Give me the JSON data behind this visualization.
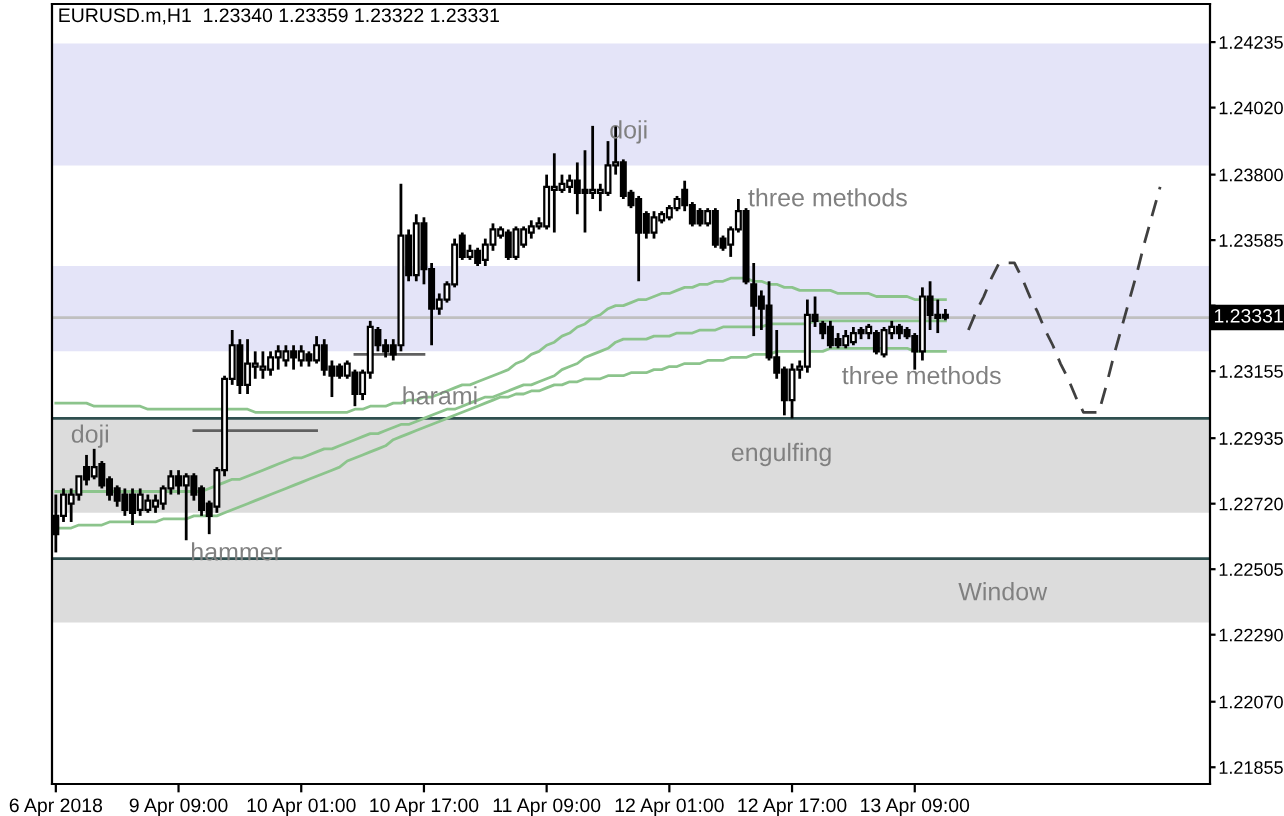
{
  "chart_data": {
    "type": "candlestick",
    "title": "EURUSD.m,H1  1.23340 1.23359 1.23322 1.23331",
    "categories": [
      "6 Apr 2018",
      null,
      null,
      null,
      null,
      null,
      null,
      null,
      null,
      null,
      null,
      null,
      null,
      null,
      null,
      null,
      "9 Apr 09:00",
      null,
      null,
      null,
      null,
      null,
      null,
      null,
      null,
      null,
      null,
      null,
      null,
      null,
      null,
      null,
      "10 Apr 01:00",
      null,
      null,
      null,
      null,
      null,
      null,
      null,
      null,
      null,
      null,
      null,
      null,
      null,
      null,
      null,
      "10 Apr 17:00",
      null,
      null,
      null,
      null,
      null,
      null,
      null,
      null,
      null,
      null,
      null,
      null,
      null,
      null,
      null,
      "11 Apr 09:00",
      null,
      null,
      null,
      null,
      null,
      null,
      null,
      null,
      null,
      null,
      null,
      null,
      null,
      null,
      null,
      "12 Apr 01:00",
      null,
      null,
      null,
      null,
      null,
      null,
      null,
      null,
      null,
      null,
      null,
      null,
      null,
      null,
      null,
      "12 Apr 17:00",
      null,
      null,
      null,
      null,
      null,
      null,
      null,
      null,
      null,
      null,
      null,
      null,
      null,
      null,
      null,
      "13 Apr 09:00",
      null,
      null,
      null,
      null,
      null,
      null,
      null,
      null,
      null,
      null,
      null,
      null,
      null,
      null,
      null,
      null,
      null,
      null,
      null,
      null,
      null,
      null,
      null,
      null,
      null,
      null,
      null,
      null,
      null,
      null,
      null,
      null,
      null,
      null,
      null,
      null,
      null,
      null
    ],
    "ohlc": [
      [
        1.2268,
        1.2275,
        1.2256,
        1.2262
      ],
      [
        1.2268,
        1.2277,
        1.2266,
        1.2275
      ],
      [
        1.2272,
        1.2277,
        1.2266,
        1.2275
      ],
      [
        1.2275,
        1.2281,
        1.2273,
        1.2281
      ],
      [
        1.2284,
        1.2288,
        1.2278,
        1.228
      ],
      [
        1.2281,
        1.229,
        1.228,
        1.2284
      ],
      [
        1.2285,
        1.2286,
        1.2277,
        1.2278
      ],
      [
        1.228,
        1.2281,
        1.2273,
        1.2275
      ],
      [
        1.2277,
        1.2278,
        1.2271,
        1.2273
      ],
      [
        1.2275,
        1.2277,
        1.2268,
        1.227
      ],
      [
        1.2275,
        1.2277,
        1.2265,
        1.2269
      ],
      [
        1.227,
        1.2277,
        1.2268,
        1.2275
      ],
      [
        1.227,
        1.2275,
        1.2269,
        1.2273
      ],
      [
        1.2271,
        1.2275,
        1.2269,
        1.2273
      ],
      [
        1.2272,
        1.2278,
        1.227,
        1.2277
      ],
      [
        1.2277,
        1.2283,
        1.2275,
        1.2281
      ],
      [
        1.2281,
        1.2283,
        1.2275,
        1.2278
      ],
      [
        1.2278,
        1.2282,
        1.226,
        1.2281
      ],
      [
        1.2281,
        1.2282,
        1.2273,
        1.2275
      ],
      [
        1.2277,
        1.2278,
        1.2268,
        1.227
      ],
      [
        1.2272,
        1.2273,
        1.2262,
        1.2268
      ],
      [
        1.2271,
        1.2284,
        1.2269,
        1.2283
      ],
      [
        1.2283,
        1.2314,
        1.2281,
        1.2313
      ],
      [
        1.2313,
        1.2329,
        1.2311,
        1.2324
      ],
      [
        1.2324,
        1.2326,
        1.2308,
        1.2311
      ],
      [
        1.2311,
        1.2326,
        1.2308,
        1.2318
      ],
      [
        1.2317,
        1.2322,
        1.2313,
        1.2318
      ],
      [
        1.2316,
        1.2322,
        1.2313,
        1.2317
      ],
      [
        1.2316,
        1.2322,
        1.2314,
        1.232
      ],
      [
        1.232,
        1.2324,
        1.2316,
        1.2322
      ],
      [
        1.2319,
        1.2324,
        1.2317,
        1.2322
      ],
      [
        1.2322,
        1.2324,
        1.2316,
        1.232
      ],
      [
        1.2319,
        1.2324,
        1.2317,
        1.2322
      ],
      [
        1.2321,
        1.2322,
        1.2317,
        1.2319
      ],
      [
        1.2319,
        1.2327,
        1.2318,
        1.2324
      ],
      [
        1.2324,
        1.2326,
        1.2314,
        1.2316
      ],
      [
        1.2317,
        1.2319,
        1.2307,
        1.2314
      ],
      [
        1.2317,
        1.2318,
        1.2313,
        1.2314
      ],
      [
        1.2314,
        1.2319,
        1.2313,
        1.2318
      ],
      [
        1.2315,
        1.2316,
        1.2304,
        1.2308
      ],
      [
        1.2308,
        1.2316,
        1.2306,
        1.2315
      ],
      [
        1.2315,
        1.2332,
        1.2313,
        1.233
      ],
      [
        1.2329,
        1.233,
        1.2322,
        1.2324
      ],
      [
        1.2324,
        1.2326,
        1.232,
        1.2322
      ],
      [
        1.2324,
        1.2326,
        1.2319,
        1.2321
      ],
      [
        1.2324,
        1.2377,
        1.2322,
        1.236
      ],
      [
        1.236,
        1.2362,
        1.2345,
        1.2347
      ],
      [
        1.2347,
        1.2367,
        1.2345,
        1.2364
      ],
      [
        1.2364,
        1.2366,
        1.2344,
        1.2349
      ],
      [
        1.2349,
        1.2351,
        1.2324,
        1.2336
      ],
      [
        1.2336,
        1.2341,
        1.2334,
        1.2339
      ],
      [
        1.2339,
        1.2345,
        1.2338,
        1.2344
      ],
      [
        1.2344,
        1.2359,
        1.2343,
        1.2357
      ],
      [
        1.236,
        1.2361,
        1.2352,
        1.2353
      ],
      [
        1.2353,
        1.2357,
        1.2352,
        1.2355
      ],
      [
        1.2355,
        1.2356,
        1.235,
        1.2351
      ],
      [
        1.2352,
        1.2359,
        1.235,
        1.2357
      ],
      [
        1.2357,
        1.2364,
        1.2355,
        1.2362
      ],
      [
        1.236,
        1.2363,
        1.2359,
        1.2362
      ],
      [
        1.2361,
        1.2362,
        1.2352,
        1.2353
      ],
      [
        1.2353,
        1.2363,
        1.2352,
        1.2362
      ],
      [
        1.2357,
        1.2363,
        1.2356,
        1.2362
      ],
      [
        1.2361,
        1.2365,
        1.2359,
        1.2363
      ],
      [
        1.2363,
        1.2366,
        1.2362,
        1.2364
      ],
      [
        1.2363,
        1.238,
        1.2362,
        1.2376
      ],
      [
        1.2375,
        1.2387,
        1.2361,
        1.2376
      ],
      [
        1.2375,
        1.238,
        1.2374,
        1.2377
      ],
      [
        1.2376,
        1.238,
        1.2374,
        1.2378
      ],
      [
        1.2378,
        1.2384,
        1.2367,
        1.2374
      ],
      [
        1.2375,
        1.2388,
        1.2361,
        1.2374
      ],
      [
        1.2374,
        1.2396,
        1.2372,
        1.2375
      ],
      [
        1.2374,
        1.2377,
        1.2368,
        1.2375
      ],
      [
        1.2374,
        1.2391,
        1.2373,
        1.2383
      ],
      [
        1.2383,
        1.2396,
        1.238,
        1.2384
      ],
      [
        1.2384,
        1.2385,
        1.2372,
        1.2373
      ],
      [
        1.2374,
        1.2375,
        1.2369,
        1.237
      ],
      [
        1.2372,
        1.2373,
        1.2345,
        1.2361
      ],
      [
        1.2367,
        1.2368,
        1.2359,
        1.2361
      ],
      [
        1.2361,
        1.2368,
        1.2359,
        1.2366
      ],
      [
        1.2365,
        1.2368,
        1.2364,
        1.2367
      ],
      [
        1.2366,
        1.237,
        1.2365,
        1.2369
      ],
      [
        1.2369,
        1.2373,
        1.2368,
        1.2372
      ],
      [
        1.2375,
        1.2378,
        1.2368,
        1.237
      ],
      [
        1.237,
        1.2371,
        1.2363,
        1.2364
      ],
      [
        1.2368,
        1.2369,
        1.2363,
        1.2364
      ],
      [
        1.2364,
        1.2369,
        1.2363,
        1.2368
      ],
      [
        1.2368,
        1.2369,
        1.2356,
        1.2357
      ],
      [
        1.2359,
        1.236,
        1.2355,
        1.2356
      ],
      [
        1.2357,
        1.2363,
        1.2353,
        1.2362
      ],
      [
        1.2362,
        1.2372,
        1.2361,
        1.2368
      ],
      [
        1.2368,
        1.2369,
        1.2344,
        1.2345
      ],
      [
        1.2344,
        1.2351,
        1.2327,
        1.2337
      ],
      [
        1.234,
        1.2342,
        1.2329,
        1.2336
      ],
      [
        1.2337,
        1.2345,
        1.2319,
        1.232
      ],
      [
        1.232,
        1.2329,
        1.2313,
        1.2315
      ],
      [
        1.2316,
        1.2317,
        1.2301,
        1.2306
      ],
      [
        1.2306,
        1.2318,
        1.23,
        1.2316
      ],
      [
        1.2316,
        1.2319,
        1.2313,
        1.2317
      ],
      [
        1.2317,
        1.2339,
        1.2315,
        1.2334
      ],
      [
        1.2334,
        1.234,
        1.233,
        1.2332
      ],
      [
        1.2331,
        1.2332,
        1.2326,
        1.2328
      ],
      [
        1.233,
        1.2332,
        1.2323,
        1.2324
      ],
      [
        1.2326,
        1.2328,
        1.2323,
        1.2324
      ],
      [
        1.2324,
        1.2329,
        1.2323,
        1.2327
      ],
      [
        1.2325,
        1.233,
        1.2324,
        1.2328
      ],
      [
        1.2329,
        1.233,
        1.2326,
        1.2328
      ],
      [
        1.2328,
        1.2331,
        1.2326,
        1.233
      ],
      [
        1.2328,
        1.2329,
        1.2321,
        1.2322
      ],
      [
        1.2321,
        1.233,
        1.232,
        1.2329
      ],
      [
        1.2328,
        1.2332,
        1.2326,
        1.233
      ],
      [
        1.233,
        1.2331,
        1.2326,
        1.2328
      ],
      [
        1.2329,
        1.233,
        1.2326,
        1.2327
      ],
      [
        1.2327,
        1.2328,
        1.2316,
        1.2322
      ],
      [
        1.2322,
        1.2343,
        1.2319,
        1.234
      ],
      [
        1.234,
        1.2345,
        1.2329,
        1.2334
      ],
      [
        1.2334,
        1.2339,
        1.2328,
        1.2333
      ],
      [
        1.2334,
        1.23359,
        1.23322,
        1.23331
      ],
      null,
      null,
      null,
      null,
      null,
      null,
      null,
      null,
      null,
      null,
      null,
      null,
      null,
      null,
      null,
      null,
      null,
      null,
      null,
      null,
      null,
      null,
      null,
      null,
      null,
      null,
      null,
      null,
      null,
      null,
      null,
      null,
      null,
      null
    ],
    "color": "#000000",
    "series": [
      {
        "type": "line",
        "color": "#8cc48c",
        "values": [
          1.2305,
          1.2305,
          1.2305,
          1.2305,
          1.2305,
          1.2304,
          1.2304,
          1.2304,
          1.2304,
          1.2304,
          1.2304,
          1.2304,
          1.2303,
          1.2303,
          1.2303,
          1.2303,
          1.2303,
          1.2303,
          1.2303,
          1.2303,
          1.2303,
          1.2303,
          1.2303,
          1.2303,
          1.2303,
          1.2303,
          1.2302,
          1.2302,
          1.2302,
          1.2302,
          1.2302,
          1.2302,
          1.2302,
          1.2302,
          1.2302,
          1.2302,
          1.2302,
          1.2302,
          1.2302,
          1.2303,
          1.2303,
          1.2304,
          1.2304,
          1.2304,
          1.2305,
          1.2305,
          1.2306,
          1.2306,
          1.2307,
          1.2307,
          1.2308,
          1.2309,
          1.231,
          1.2311,
          1.2311,
          1.2312,
          1.2313,
          1.2314,
          1.2315,
          1.2316,
          1.2318,
          1.2319,
          1.2321,
          1.2322,
          1.2324,
          1.2325,
          1.2327,
          1.2328,
          1.233,
          1.2331,
          1.2333,
          1.2334,
          1.2336,
          1.2337,
          1.2337,
          1.2338,
          1.2339,
          1.2339,
          1.234,
          1.2341,
          1.2341,
          1.2342,
          1.2343,
          1.2343,
          1.2344,
          1.2344,
          1.2345,
          1.2345,
          1.2346,
          1.2346,
          1.2346,
          1.2345,
          1.2345,
          1.2344,
          1.2344,
          1.2343,
          1.2343,
          1.2342,
          1.2342,
          1.2342,
          1.2342,
          1.2342,
          1.2341,
          1.2341,
          1.2341,
          1.2341,
          1.2341,
          1.234,
          1.234,
          1.234,
          1.234,
          1.234,
          1.2339,
          1.2339,
          1.2339,
          1.2339,
          1.2339,
          null,
          null,
          null,
          null,
          null,
          null,
          null,
          null,
          null,
          null,
          null,
          null,
          null,
          null,
          null,
          null,
          null,
          null,
          null,
          null,
          null,
          null,
          null,
          null,
          null,
          null,
          null,
          null,
          null,
          null,
          null,
          null,
          null,
          null
        ]
      },
      {
        "type": "line",
        "color": "#8cc48c",
        "values": [
          1.2276,
          1.2276,
          1.2276,
          1.2276,
          1.2276,
          1.2276,
          1.2276,
          1.2276,
          1.2276,
          1.2276,
          1.2276,
          1.2276,
          1.2276,
          1.2276,
          1.2276,
          1.2276,
          1.2276,
          1.2276,
          1.2276,
          1.2276,
          1.2277,
          1.2278,
          1.2279,
          1.228,
          1.228,
          1.2281,
          1.2282,
          1.2283,
          1.2284,
          1.2285,
          1.2286,
          1.2287,
          1.2287,
          1.2288,
          1.2289,
          1.229,
          1.229,
          1.2291,
          1.2292,
          1.2293,
          1.2294,
          1.2295,
          1.2295,
          1.2296,
          1.2297,
          1.2298,
          1.2298,
          1.2299,
          1.23,
          1.2301,
          1.2302,
          1.2303,
          1.2303,
          1.2304,
          1.2305,
          1.2306,
          1.2307,
          1.2307,
          1.2308,
          1.2309,
          1.231,
          1.2311,
          1.2311,
          1.2312,
          1.2313,
          1.2314,
          1.2316,
          1.2317,
          1.2318,
          1.232,
          1.2321,
          1.2322,
          1.2323,
          1.2325,
          1.2326,
          1.2326,
          1.2326,
          1.2326,
          1.2327,
          1.2327,
          1.2327,
          1.2328,
          1.2328,
          1.2328,
          1.2329,
          1.2329,
          1.2329,
          1.233,
          1.233,
          1.233,
          1.233,
          1.233,
          1.233,
          1.2331,
          1.2331,
          1.2331,
          1.2331,
          1.2331,
          1.2331,
          1.2332,
          1.2332,
          1.2332,
          1.2332,
          1.2332,
          1.2332,
          1.2332,
          1.2332,
          1.2332,
          1.2332,
          1.2332,
          1.2332,
          1.2332,
          1.2332,
          1.2332,
          1.2332,
          1.2332,
          1.2332,
          null,
          null,
          null,
          null,
          null,
          null,
          null,
          null,
          null,
          null,
          null,
          null,
          null,
          null,
          null,
          null,
          null,
          null,
          null,
          null,
          null,
          null,
          null,
          null,
          null,
          null,
          null,
          null,
          null,
          null,
          null,
          null,
          null,
          null
        ]
      },
      {
        "type": "line",
        "color": "#8cc48c",
        "values": [
          1.2264,
          1.2264,
          1.2264,
          1.2265,
          1.2265,
          1.2265,
          1.2265,
          1.2266,
          1.2266,
          1.2266,
          1.2266,
          1.2266,
          1.2266,
          1.2266,
          1.2267,
          1.2267,
          1.2267,
          1.2267,
          1.2268,
          1.2268,
          1.2268,
          1.2268,
          1.2269,
          1.227,
          1.2271,
          1.2272,
          1.2273,
          1.2274,
          1.2275,
          1.2276,
          1.2277,
          1.2278,
          1.2279,
          1.228,
          1.2281,
          1.2282,
          1.2283,
          1.2284,
          1.2286,
          1.2287,
          1.2288,
          1.2289,
          1.229,
          1.2291,
          1.2293,
          1.2294,
          1.2295,
          1.2296,
          1.2297,
          1.2298,
          1.2299,
          1.23,
          1.2301,
          1.2302,
          1.2303,
          1.2304,
          1.2305,
          1.2306,
          1.2307,
          1.2307,
          1.2308,
          1.2308,
          1.2309,
          1.2309,
          1.231,
          1.2311,
          1.2311,
          1.2312,
          1.2312,
          1.2313,
          1.2313,
          1.2313,
          1.2314,
          1.2314,
          1.2314,
          1.2315,
          1.2315,
          1.2315,
          1.2316,
          1.2316,
          1.2317,
          1.2317,
          1.2318,
          1.2318,
          1.2318,
          1.2319,
          1.2319,
          1.2319,
          1.232,
          1.232,
          1.232,
          1.2321,
          1.2321,
          1.2321,
          1.2322,
          1.2322,
          1.2322,
          1.2322,
          1.2322,
          1.2322,
          1.2322,
          1.2323,
          1.2323,
          1.2323,
          1.2323,
          1.2323,
          1.2323,
          1.2323,
          1.2323,
          1.2323,
          1.2323,
          1.2323,
          1.2322,
          1.2322,
          1.2322,
          1.2322,
          1.2322,
          null,
          null,
          null,
          null,
          null,
          null,
          null,
          null,
          null,
          null,
          null,
          null,
          null,
          null,
          null,
          null,
          null,
          null,
          null,
          null,
          null,
          null,
          null,
          null,
          null,
          null,
          null,
          null,
          null,
          null,
          null,
          null,
          null,
          null
        ]
      },
      {
        "type": "line",
        "color": "#606060",
        "values": [
          null,
          null,
          null,
          null,
          null,
          null,
          null,
          null,
          null,
          null,
          null,
          null,
          null,
          null,
          null,
          null,
          null,
          null,
          1.2296,
          1.2296,
          1.2296,
          1.2296,
          1.2296,
          1.2296,
          1.2296,
          1.2296,
          1.2296,
          1.2296,
          1.2296,
          1.2296,
          1.2296,
          1.2296,
          1.2296,
          1.2296,
          1.2296,
          null,
          null,
          null,
          null,
          null,
          null,
          null,
          null,
          null,
          null,
          null,
          null,
          null,
          null,
          null,
          null,
          null,
          null,
          null,
          null,
          null,
          null,
          null,
          null,
          null,
          null,
          null,
          null,
          null,
          null,
          null,
          null,
          null,
          null,
          null,
          null,
          null,
          null,
          null,
          null,
          null,
          null,
          null,
          null,
          null,
          null,
          null,
          null,
          null,
          null,
          null,
          null,
          null,
          null,
          null,
          null,
          null,
          null,
          null,
          null,
          null,
          null,
          null,
          null,
          null,
          null,
          null,
          null,
          null,
          null,
          null,
          null,
          null,
          null,
          null,
          null,
          null,
          null,
          null,
          null,
          null,
          null,
          null,
          null,
          null,
          null,
          null,
          null,
          null,
          null,
          null,
          null,
          null,
          null,
          null,
          null,
          null,
          null,
          null,
          null,
          null,
          null,
          null,
          null,
          null,
          null,
          null,
          null,
          null,
          null,
          null,
          null,
          null,
          null,
          null,
          null
        ]
      },
      {
        "type": "line",
        "color": "#606060",
        "values": [
          null,
          null,
          null,
          null,
          null,
          null,
          null,
          null,
          null,
          null,
          null,
          null,
          null,
          null,
          null,
          null,
          null,
          null,
          null,
          null,
          null,
          null,
          null,
          null,
          null,
          null,
          null,
          null,
          null,
          null,
          null,
          null,
          null,
          null,
          null,
          null,
          null,
          null,
          null,
          1.2321,
          1.2321,
          1.2321,
          1.2321,
          1.2321,
          1.2321,
          1.2321,
          1.2321,
          1.2321,
          1.2321,
          null,
          null,
          null,
          null,
          null,
          null,
          null,
          null,
          null,
          null,
          null,
          null,
          null,
          null,
          null,
          null,
          null,
          null,
          null,
          null,
          null,
          null,
          null,
          null,
          null,
          null,
          null,
          null,
          null,
          null,
          null,
          null,
          null,
          null,
          null,
          null,
          null,
          null,
          null,
          null,
          null,
          null,
          null,
          null,
          null,
          null,
          null,
          null,
          null,
          null,
          null,
          null,
          null,
          null,
          null,
          null,
          null,
          null,
          null,
          null,
          null,
          null,
          null,
          null,
          null,
          null,
          null,
          null,
          null,
          null,
          null,
          null,
          null,
          null,
          null,
          null,
          null,
          null,
          null,
          null,
          null,
          null,
          null,
          null,
          null,
          null,
          null,
          null,
          null,
          null,
          null,
          null,
          null,
          null,
          null,
          null,
          null,
          null,
          null,
          null,
          null,
          null
        ]
      },
      {
        "type": "line",
        "color": "#404040",
        "line_style": "dashed",
        "values": [
          null,
          null,
          null,
          null,
          null,
          null,
          null,
          null,
          null,
          null,
          null,
          null,
          null,
          null,
          null,
          null,
          null,
          null,
          null,
          null,
          null,
          null,
          null,
          null,
          null,
          null,
          null,
          null,
          null,
          null,
          null,
          null,
          null,
          null,
          null,
          null,
          null,
          null,
          null,
          null,
          null,
          null,
          null,
          null,
          null,
          null,
          null,
          null,
          null,
          null,
          null,
          null,
          null,
          null,
          null,
          null,
          null,
          null,
          null,
          null,
          null,
          null,
          null,
          null,
          null,
          null,
          null,
          null,
          null,
          null,
          null,
          null,
          null,
          null,
          null,
          null,
          null,
          null,
          null,
          null,
          null,
          null,
          null,
          null,
          null,
          null,
          null,
          null,
          null,
          null,
          null,
          null,
          null,
          null,
          null,
          null,
          null,
          null,
          null,
          null,
          null,
          null,
          null,
          null,
          null,
          null,
          null,
          null,
          null,
          null,
          null,
          null,
          null,
          null,
          null,
          null,
          null,
          null,
          null,
          1.2329,
          1.2335,
          1.234,
          1.2346,
          1.2351,
          1.2351,
          1.2351,
          1.2346,
          1.234,
          1.2335,
          1.2329,
          1.2324,
          1.2318,
          1.2313,
          1.2307,
          1.2302,
          1.2302,
          1.2302,
          1.2311,
          1.2321,
          1.233,
          1.2339,
          1.2348,
          1.2358,
          1.2367,
          1.2376,
          null,
          null,
          null,
          null,
          null,
          null
        ]
      }
    ],
    "bands": [
      {
        "axis": "y",
        "from": 1.2383,
        "to": 1.2423,
        "color": "#e4e4f8"
      },
      {
        "axis": "y",
        "from": 1.2322,
        "to": 1.235,
        "color": "#e4e4f8"
      },
      {
        "axis": "y",
        "from": 1.2269,
        "to": 1.23,
        "color": "#dcdcdc"
      },
      {
        "axis": "y",
        "from": 1.2233,
        "to": 1.2254,
        "color": "#dcdcdc"
      }
    ],
    "ref_lines": [
      {
        "axis": "y",
        "value": 1.23,
        "color": "#2f4f4f"
      },
      {
        "axis": "y",
        "value": 1.2254,
        "color": "#2f4f4f"
      },
      {
        "axis": "y",
        "value": 1.23331,
        "label": "1.23331",
        "color": "#c0c0c0"
      }
    ],
    "annotations": [
      "doji",
      "hammer",
      "harami",
      "doji",
      "three methods",
      {
        "text": "engulfing",
        "y": 1.23
      },
      "three methods",
      "Window"
    ],
    "ylim": [
      1.218,
      1.2436
    ],
    "yticks": [
      {
        "value": 1.24235,
        "label": "1.24235"
      },
      {
        "value": 1.2402,
        "label": "1.24020"
      },
      {
        "value": 1.238,
        "label": "1.23800"
      },
      {
        "value": 1.23585,
        "label": "1.23585"
      },
      {
        "value": 1.2337,
        "label": null
      },
      {
        "value": 1.23155,
        "label": "1.23155"
      },
      {
        "value": 1.22935,
        "label": "1.22935"
      },
      {
        "value": 1.2272,
        "label": "1.22720"
      },
      {
        "value": 1.22505,
        "label": "1.22505"
      },
      {
        "value": 1.2229,
        "label": "1.22290"
      },
      {
        "value": 1.2207,
        "label": "1.22070"
      },
      {
        "value": 1.21855,
        "label": "1.21855"
      }
    ],
    "grid": false,
    "legend": false
  }
}
